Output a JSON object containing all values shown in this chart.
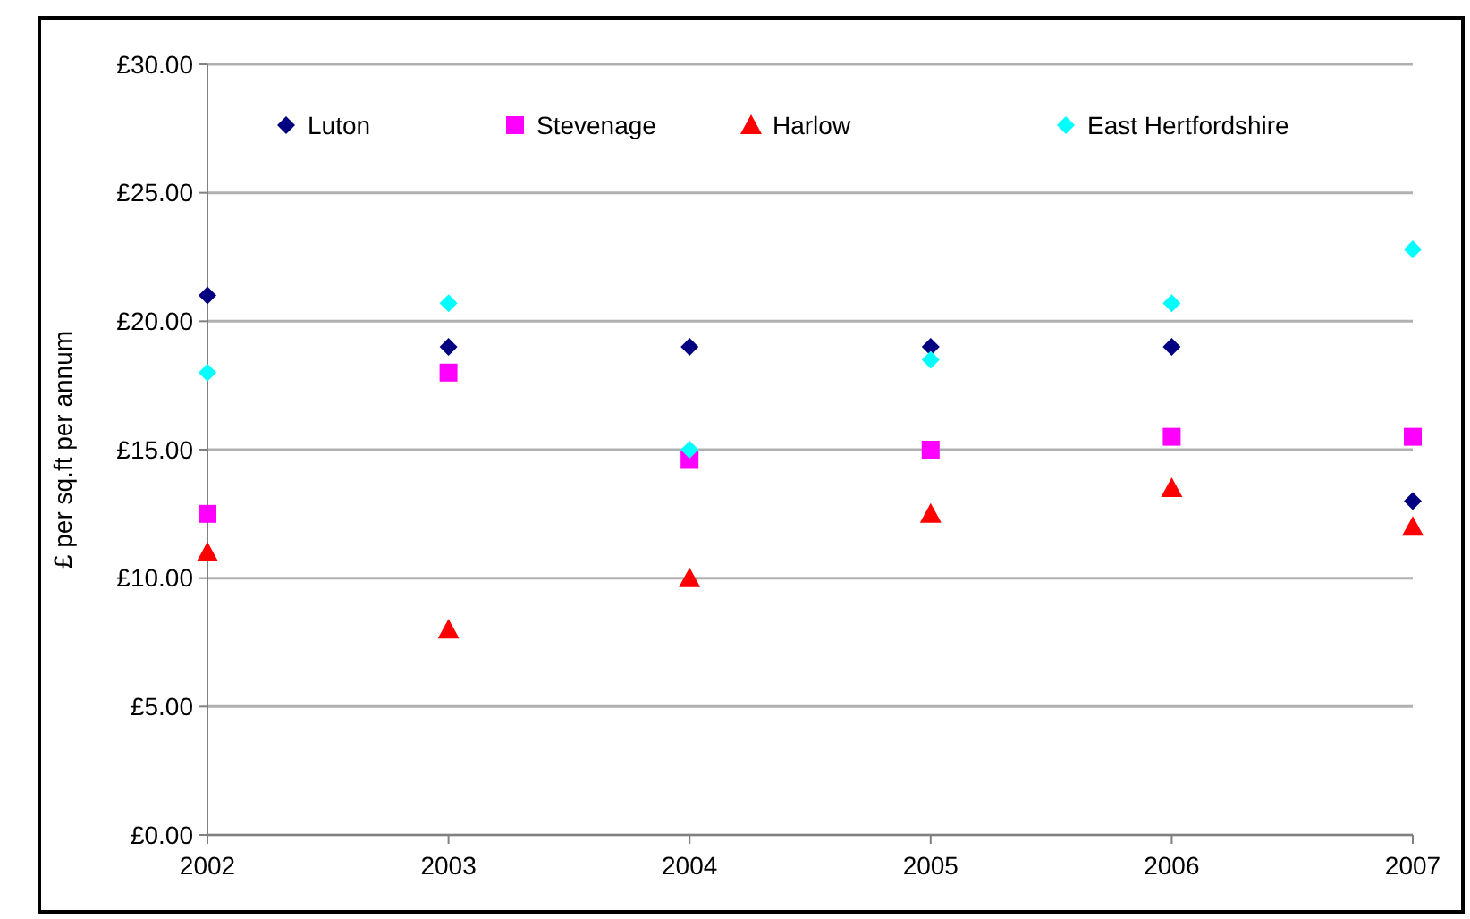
{
  "chart_data": {
    "type": "scatter",
    "ylabel": "£ per sq.ft per annum",
    "x": [
      2002,
      2003,
      2004,
      2005,
      2006,
      2007
    ],
    "xlim": [
      2002,
      2007
    ],
    "xticks": [
      2002,
      2003,
      2004,
      2005,
      2006,
      2007
    ],
    "ylim": [
      0,
      30
    ],
    "yticks": [
      {
        "value": 0,
        "label": "£0.00"
      },
      {
        "value": 5,
        "label": "£5.00"
      },
      {
        "value": 10,
        "label": "£10.00"
      },
      {
        "value": 15,
        "label": "£15.00"
      },
      {
        "value": 20,
        "label": "£20.00"
      },
      {
        "value": 25,
        "label": "£25.00"
      },
      {
        "value": 30,
        "label": "£30.00"
      }
    ],
    "grid": "y",
    "legend": "top",
    "series": [
      {
        "name": "Luton",
        "color": "#000080",
        "marker": "diamond",
        "values": [
          21,
          19,
          19,
          19,
          19,
          13
        ]
      },
      {
        "name": "Stevenage",
        "color": "#ff00ff",
        "marker": "square",
        "values": [
          12.5,
          18,
          14.6,
          15,
          15.5,
          15.5
        ]
      },
      {
        "name": "Harlow",
        "color": "#ff0000",
        "marker": "triangle",
        "values": [
          11,
          8,
          10,
          12.5,
          13.5,
          12
        ]
      },
      {
        "name": "East Hertfordshire",
        "color": "#00ffff",
        "marker": "diamond",
        "values": [
          18,
          20.7,
          15,
          18.5,
          20.7,
          22.8
        ]
      }
    ]
  }
}
